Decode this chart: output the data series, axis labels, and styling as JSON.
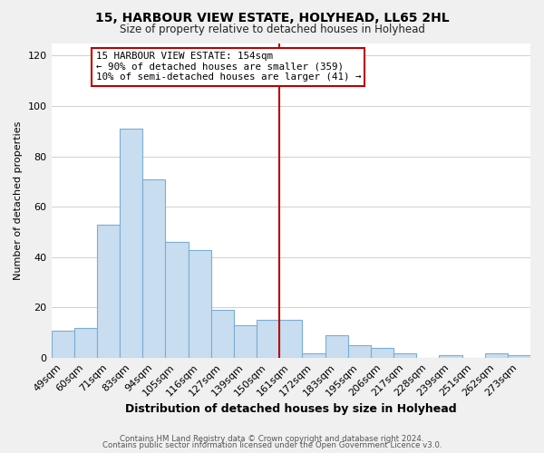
{
  "title": "15, HARBOUR VIEW ESTATE, HOLYHEAD, LL65 2HL",
  "subtitle": "Size of property relative to detached houses in Holyhead",
  "xlabel": "Distribution of detached houses by size in Holyhead",
  "ylabel": "Number of detached properties",
  "bar_labels": [
    "49sqm",
    "60sqm",
    "71sqm",
    "83sqm",
    "94sqm",
    "105sqm",
    "116sqm",
    "127sqm",
    "139sqm",
    "150sqm",
    "161sqm",
    "172sqm",
    "183sqm",
    "195sqm",
    "206sqm",
    "217sqm",
    "228sqm",
    "239sqm",
    "251sqm",
    "262sqm",
    "273sqm"
  ],
  "bar_values": [
    11,
    12,
    53,
    91,
    71,
    46,
    43,
    19,
    13,
    15,
    15,
    2,
    9,
    5,
    4,
    2,
    0,
    1,
    0,
    2,
    1
  ],
  "bar_color": "#c9ddf0",
  "bar_edge_color": "#7aadd4",
  "vline_index": 9.5,
  "vline_color": "#bb0000",
  "annotation_title": "15 HARBOUR VIEW ESTATE: 154sqm",
  "annotation_line1": "← 90% of detached houses are smaller (359)",
  "annotation_line2": "10% of semi-detached houses are larger (41) →",
  "annotation_box_edge": "#bb0000",
  "ylim": [
    0,
    125
  ],
  "yticks": [
    0,
    20,
    40,
    60,
    80,
    100,
    120
  ],
  "footer1": "Contains HM Land Registry data © Crown copyright and database right 2024.",
  "footer2": "Contains public sector information licensed under the Open Government Licence v3.0.",
  "background_color": "#f0f0f0",
  "plot_background": "#ffffff",
  "grid_color": "#d0d0d0"
}
